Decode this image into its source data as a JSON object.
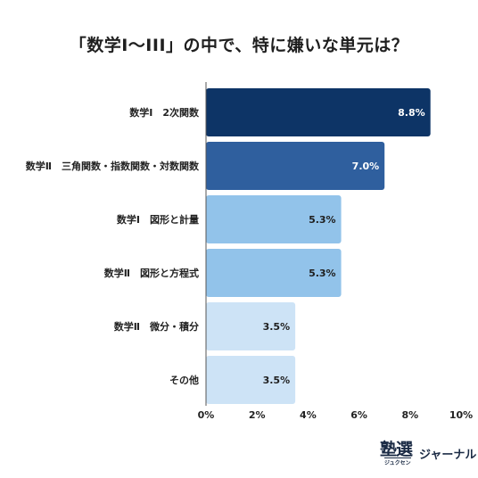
{
  "title": "「数学I〜III」の中で、特に嫌いな単元は？",
  "chart_data": {
    "type": "bar",
    "orientation": "horizontal",
    "title": "「数学I〜III」の中で、特に嫌いな単元は？",
    "categories": [
      "数学Ⅰ　2次関数",
      "数学Ⅱ　三角関数・指数関数・対数関数",
      "数学Ⅰ　図形と計量",
      "数学Ⅱ　図形と方程式",
      "数学Ⅱ　微分・積分",
      "その他"
    ],
    "values": [
      8.8,
      7.0,
      5.3,
      5.3,
      3.5,
      3.5
    ],
    "value_labels": [
      "8.8%",
      "7.0%",
      "5.3%",
      "5.3%",
      "3.5%",
      "3.5%"
    ],
    "bar_colors": [
      "#0d3466",
      "#2f5f9e",
      "#92c3ea",
      "#92c3ea",
      "#cde3f6",
      "#cde3f6"
    ],
    "label_colors": [
      "#ffffff",
      "#ffffff",
      "#1f1f1f",
      "#1f1f1f",
      "#1f1f1f",
      "#1f1f1f"
    ],
    "xlim": [
      0,
      10
    ],
    "x_ticks": [
      "0%",
      "2%",
      "4%",
      "6%",
      "8%",
      "10%"
    ],
    "grid": false,
    "legend": "none"
  },
  "logo": {
    "mark": "塾選",
    "sub": "ジュクセン",
    "text": "ジャーナル"
  }
}
